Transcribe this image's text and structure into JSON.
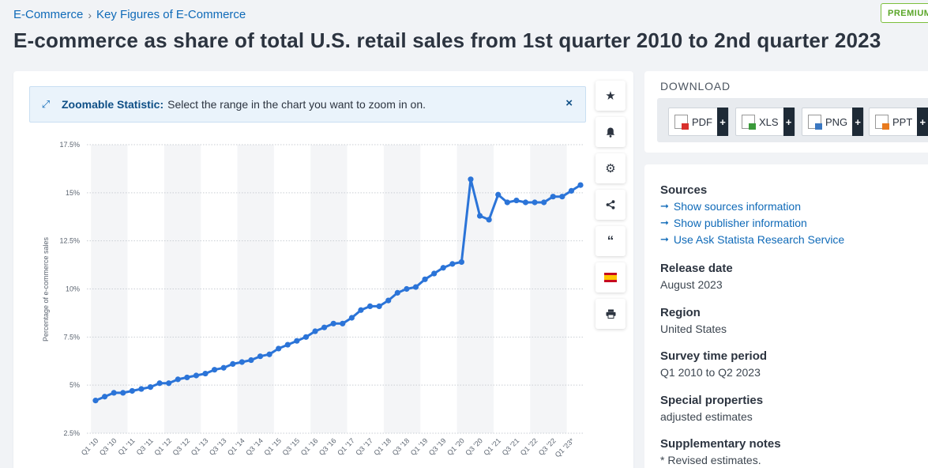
{
  "breadcrumb": {
    "item1": "E-Commerce",
    "separator": "›",
    "item2": "Key Figures of E-Commerce"
  },
  "badge": "PREMIUM",
  "title": "E-commerce as share of total U.S. retail sales from 1st quarter 2010 to 2nd quarter 2023",
  "zoom_banner": {
    "label": "Zoomable Statistic:",
    "text": "Select the range in the chart you want to zoom in on.",
    "close": "×"
  },
  "tools": [
    "star-icon",
    "bell-icon",
    "gear-icon",
    "share-icon",
    "quote-icon",
    "flag-es-icon",
    "print-icon"
  ],
  "download": {
    "title": "DOWNLOAD",
    "buttons": [
      {
        "label": "PDF",
        "plus": "+",
        "color": "#d9302c"
      },
      {
        "label": "XLS",
        "plus": "+",
        "color": "#3a9a3a"
      },
      {
        "label": "PNG",
        "plus": "+",
        "color": "#3b78c2"
      },
      {
        "label": "PPT",
        "plus": "+",
        "color": "#e87a1e"
      }
    ]
  },
  "info": {
    "sources_h": "Sources",
    "links": [
      "Show sources information",
      "Show publisher information",
      "Use Ask Statista Research Service"
    ],
    "release_h": "Release date",
    "release_v": "August 2023",
    "region_h": "Region",
    "region_v": "United States",
    "period_h": "Survey time period",
    "period_v": "Q1 2010 to Q2 2023",
    "special_h": "Special properties",
    "special_v": "adjusted estimates",
    "notes_h": "Supplementary notes",
    "notes_v": "* Revised estimates."
  },
  "chart_data": {
    "type": "line",
    "ylabel": "Percentage of e-commerce sales",
    "ylim": [
      2.5,
      17.5
    ],
    "yticks": [
      "2.5%",
      "5%",
      "7.5%",
      "10%",
      "12.5%",
      "15%",
      "17.5%"
    ],
    "ytick_values": [
      2.5,
      5,
      7.5,
      10,
      12.5,
      15,
      17.5
    ],
    "xtick_labels": [
      "Q1 '10",
      "Q3 '10",
      "Q1 '11",
      "Q3 '11",
      "Q1 '12",
      "Q3 '12",
      "Q1 '13",
      "Q3 '13",
      "Q1 '14",
      "Q3 '14",
      "Q1 '15",
      "Q3 '15",
      "Q1 '16",
      "Q3 '16",
      "Q1 '17",
      "Q3 '17",
      "Q1 '18",
      "Q3 '18",
      "Q1 '19",
      "Q3 '19",
      "Q1 '20",
      "Q3 '20",
      "Q1 '21",
      "Q3 '21",
      "Q1 '22",
      "Q3 '22",
      "Q1 '23*"
    ],
    "color": "#2b74d8",
    "grid": true,
    "series": [
      {
        "values": [
          4.2,
          4.4,
          4.6,
          4.6,
          4.7,
          4.8,
          4.9,
          5.1,
          5.1,
          5.3,
          5.4,
          5.5,
          5.6,
          5.8,
          5.9,
          6.1,
          6.2,
          6.3,
          6.5,
          6.6,
          6.9,
          7.1,
          7.3,
          7.5,
          7.8,
          8.0,
          8.2,
          8.2,
          8.5,
          8.9,
          9.1,
          9.1,
          9.4,
          9.8,
          10.0,
          10.1,
          10.5,
          10.8,
          11.1,
          11.3,
          11.4,
          15.7,
          13.8,
          13.6,
          14.9,
          14.5,
          14.6,
          14.5,
          14.5,
          14.5,
          14.8,
          14.8,
          15.1,
          15.4
        ]
      }
    ]
  }
}
